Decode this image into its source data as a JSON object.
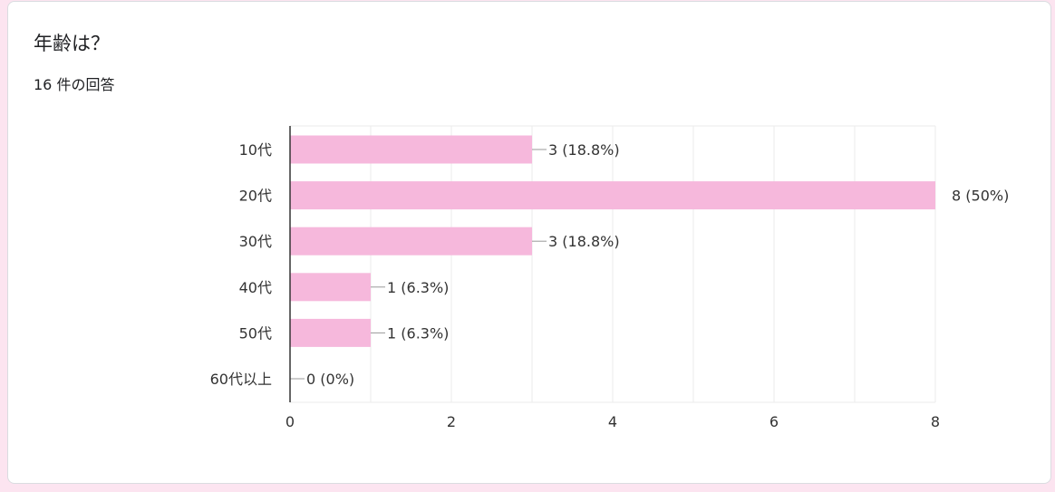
{
  "card": {
    "title": "年齢は？",
    "response_count": "16 件の回答"
  },
  "colors": {
    "bar": "#f6b8dc",
    "leader": "#999999",
    "grid": "#ebebeb",
    "axis": "#333333",
    "text": "#333333",
    "background": "#fce4f0"
  },
  "chart_data": {
    "type": "bar",
    "orientation": "horizontal",
    "categories": [
      "10代",
      "20代",
      "30代",
      "40代",
      "50代",
      "60代以上"
    ],
    "values": [
      3,
      8,
      3,
      1,
      1,
      0
    ],
    "data_labels": [
      "3 (18.8%)",
      "8 (50%)",
      "3 (18.8%)",
      "1 (6.3%)",
      "1 (6.3%)",
      "0 (0%)"
    ],
    "x_ticks": [
      0,
      2,
      4,
      6,
      8
    ],
    "xlim": [
      0,
      8
    ],
    "grid": true,
    "legend": "none"
  }
}
